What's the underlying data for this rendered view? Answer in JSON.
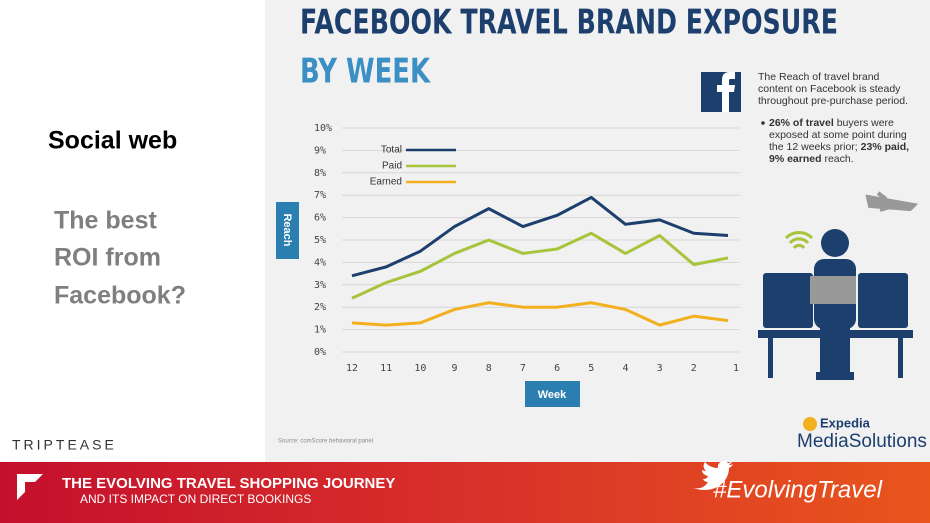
{
  "slide": {
    "heading": "Social web",
    "question": [
      "The best",
      "ROI from",
      "Facebook?"
    ],
    "brand": "TRIPTEASE"
  },
  "facebook_note": {
    "lines": [
      "The Reach of travel brand",
      "content on Facebook is steady",
      "throughout pre-purchase period."
    ],
    "bullet": [
      [
        "26% of travel",
        " buyers were"
      ],
      [
        "exposed at some point during"
      ],
      [
        "the 12 weeks prior; ",
        "23% paid,"
      ],
      [
        "9% earned",
        " reach."
      ]
    ]
  },
  "source": "Source: comScore behavioral panel",
  "logo": {
    "top": "Expedia",
    "bottom": "MediaSolutions"
  },
  "banner": {
    "title": "THE EVOLVING TRAVEL SHOPPING JOURNEY",
    "subtitle": "AND ITS IMPACT ON DIRECT BOOKINGS",
    "hashtag": "#EvolvingTravel"
  },
  "chart_data": {
    "type": "line",
    "title": "FACEBOOK TRAVEL BRAND EXPOSURE",
    "subtitle": "BY WEEK",
    "x_label": "Week",
    "y_label": "Reach",
    "categories": [
      "12",
      "11",
      "10",
      "9",
      "8",
      "7",
      "6",
      "5",
      "4",
      "3",
      "2",
      "1"
    ],
    "series": [
      {
        "name": "Total",
        "color": "#1d3f6e",
        "values": [
          3.4,
          3.8,
          4.5,
          5.6,
          6.4,
          5.6,
          6.1,
          6.9,
          5.7,
          5.9,
          5.3,
          5.2
        ]
      },
      {
        "name": "Paid",
        "color": "#a8c43c",
        "values": [
          2.4,
          3.1,
          3.6,
          4.4,
          5.0,
          4.4,
          4.6,
          5.3,
          4.4,
          5.2,
          3.9,
          4.2
        ]
      },
      {
        "name": "Earned",
        "color": "#f2b01e",
        "values": [
          1.3,
          1.2,
          1.3,
          1.9,
          2.2,
          2.0,
          2.0,
          2.2,
          1.9,
          1.2,
          1.6,
          1.4
        ]
      }
    ],
    "ylim": [
      0,
      10
    ],
    "yticks": [
      {
        "value": 0,
        "label": "0%"
      },
      {
        "value": 1,
        "label": "1%"
      },
      {
        "value": 2,
        "label": "2%"
      },
      {
        "value": 3,
        "label": "3%"
      },
      {
        "value": 4,
        "label": "4%"
      },
      {
        "value": 5,
        "label": "5%"
      },
      {
        "value": 6,
        "label": "6%"
      },
      {
        "value": 7,
        "label": "7%"
      },
      {
        "value": 8,
        "label": "8%"
      },
      {
        "value": 9,
        "label": "9%"
      },
      {
        "value": 10,
        "label": "10%"
      }
    ],
    "grid": true
  }
}
